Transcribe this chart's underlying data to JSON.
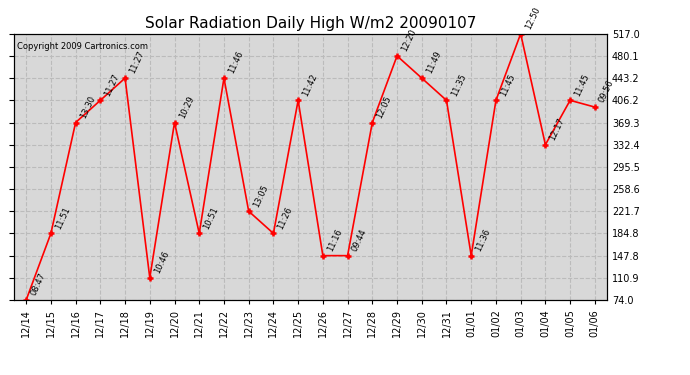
{
  "title": "Solar Radiation Daily High W/m2 20090107",
  "copyright": "Copyright 2009 Cartronics.com",
  "x_labels": [
    "12/14",
    "12/15",
    "12/16",
    "12/17",
    "12/18",
    "12/19",
    "12/20",
    "12/21",
    "12/22",
    "12/23",
    "12/24",
    "12/25",
    "12/26",
    "12/27",
    "12/28",
    "12/29",
    "12/30",
    "12/31",
    "01/01",
    "01/02",
    "01/03",
    "01/04",
    "01/05",
    "01/06"
  ],
  "y_values": [
    74.0,
    184.8,
    369.3,
    406.2,
    443.2,
    110.9,
    369.3,
    184.8,
    443.2,
    221.7,
    184.8,
    406.2,
    147.8,
    147.8,
    369.3,
    480.1,
    443.2,
    406.2,
    147.8,
    406.2,
    517.0,
    332.4,
    406.2,
    395.0
  ],
  "time_labels": [
    "08:47",
    "11:51",
    "13:30",
    "11:27",
    "11:27",
    "10:46",
    "10:29",
    "10:51",
    "11:46",
    "13:05",
    "11:26",
    "11:42",
    "11:16",
    "09:44",
    "12:05",
    "12:20",
    "11:49",
    "11:35",
    "11:36",
    "11:45",
    "12:50",
    "12:17",
    "11:45",
    "09:56"
  ],
  "ylim_min": 74.0,
  "ylim_max": 517.0,
  "yticks": [
    74.0,
    110.9,
    147.8,
    184.8,
    221.7,
    258.6,
    295.5,
    332.4,
    369.3,
    406.2,
    443.2,
    480.1,
    517.0
  ],
  "line_color": "red",
  "marker_color": "red",
  "grid_color": "#bbbbbb",
  "bg_color": "#ffffff",
  "plot_bg_color": "#d8d8d8",
  "title_fontsize": 11,
  "tick_fontsize": 7,
  "annotation_fontsize": 6
}
